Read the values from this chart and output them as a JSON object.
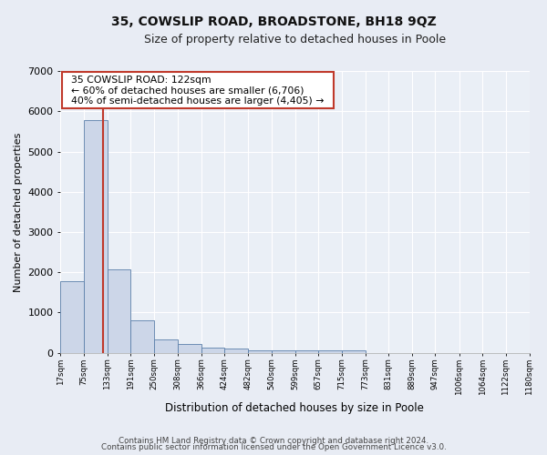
{
  "title": "35, COWSLIP ROAD, BROADSTONE, BH18 9QZ",
  "subtitle": "Size of property relative to detached houses in Poole",
  "xlabel": "Distribution of detached houses by size in Poole",
  "ylabel": "Number of detached properties",
  "annotation_title": "35 COWSLIP ROAD: 122sqm",
  "annotation_line1": "← 60% of detached houses are smaller (6,706)",
  "annotation_line2": "40% of semi-detached houses are larger (4,405) →",
  "property_size": 122,
  "bar_edges": [
    17,
    75,
    133,
    191,
    250,
    308,
    366,
    424,
    482,
    540,
    599,
    657,
    715,
    773,
    831,
    889,
    947,
    1006,
    1064,
    1122,
    1180
  ],
  "bar_heights": [
    1780,
    5780,
    2080,
    800,
    340,
    220,
    130,
    100,
    70,
    60,
    60,
    60,
    60,
    0,
    0,
    0,
    0,
    0,
    0,
    0
  ],
  "bar_color": "#ccd6e8",
  "bar_edge_color": "#5b7faa",
  "vline_color": "#c0392b",
  "background_color": "#e8ecf4",
  "plot_bg_color": "#eaeff6",
  "grid_color": "#ffffff",
  "footer_line1": "Contains HM Land Registry data © Crown copyright and database right 2024.",
  "footer_line2": "Contains public sector information licensed under the Open Government Licence v3.0.",
  "ylim": [
    0,
    7000
  ],
  "annotation_box_color": "#ffffff",
  "annotation_box_edge": "#c0392b"
}
